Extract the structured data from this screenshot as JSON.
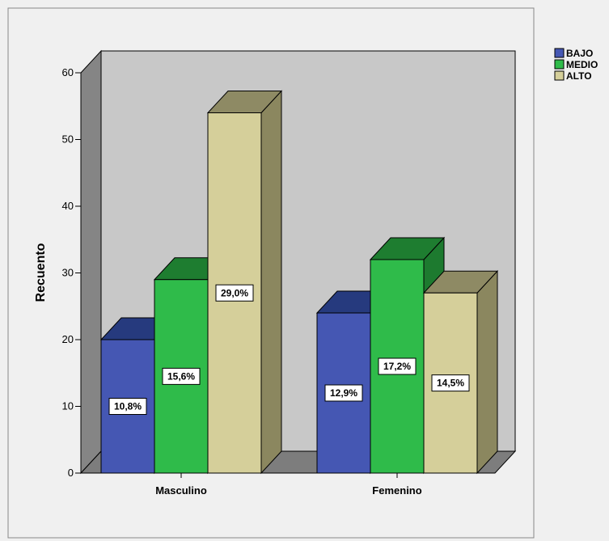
{
  "chart_data": {
    "type": "bar",
    "style": "3d-clustered",
    "categories": [
      "Masculino",
      "Femenino"
    ],
    "series": [
      {
        "name": "BAJO",
        "values": [
          20,
          24
        ],
        "labels": [
          "10,8%",
          "12,9%"
        ],
        "color": "#4557b3",
        "top_color": "#263a7e",
        "side_color": "#2a3d87"
      },
      {
        "name": "MEDIO",
        "values": [
          29,
          32
        ],
        "labels": [
          "15,6%",
          "17,2%"
        ],
        "color": "#2fbb4a",
        "top_color": "#1e7d30",
        "side_color": "#1d7a2f"
      },
      {
        "name": "ALTO",
        "values": [
          54,
          27
        ],
        "labels": [
          "29,0%",
          "14,5%"
        ],
        "color": "#d5cf9a",
        "top_color": "#8e8a64",
        "side_color": "#8b875f"
      }
    ],
    "ylabel": "Recuento",
    "xlabel": "",
    "ylim": [
      0,
      60
    ],
    "yticks": [
      0,
      10,
      20,
      30,
      40,
      50,
      60
    ],
    "legend_position": "top-right",
    "grid": false,
    "colors": {
      "background": "#f0f0f0",
      "back_wall": "#c8c8c8",
      "side_wall": "#858585",
      "floor": "#7d7d7d",
      "plot_border": "#888888"
    }
  }
}
